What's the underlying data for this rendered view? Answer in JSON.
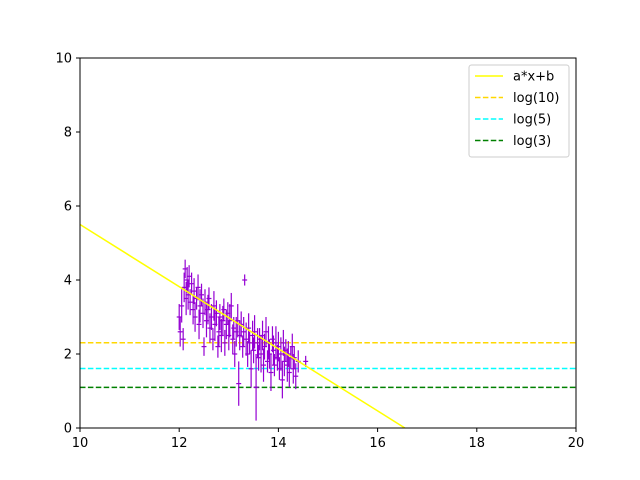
{
  "chart_data": {
    "type": "scatter",
    "xlim": [
      10,
      20
    ],
    "ylim": [
      0,
      10
    ],
    "xticks": [
      "10",
      "12",
      "14",
      "16",
      "18",
      "20"
    ],
    "yticks": [
      "0",
      "2",
      "4",
      "6",
      "8",
      "10"
    ],
    "grid": false,
    "legend_position": "top-right",
    "lines": [
      {
        "name": "a*x+b",
        "kind": "linear",
        "x": [
          10,
          16.55
        ],
        "y": [
          5.5,
          0
        ],
        "color": "#ffff00",
        "style": "solid"
      },
      {
        "name": "log(10)",
        "kind": "horizontal",
        "y": 2.303,
        "color": "#ffd700",
        "style": "dashed"
      },
      {
        "name": "log(5)",
        "kind": "horizontal",
        "y": 1.609,
        "color": "#00ffff",
        "style": "dashed"
      },
      {
        "name": "log(3)",
        "kind": "horizontal",
        "y": 1.099,
        "color": "#008000",
        "style": "dashed"
      }
    ],
    "scatter": {
      "color": "#9400d3",
      "x_error": 0.05,
      "points": [
        [
          12.0,
          3.0,
          0.35
        ],
        [
          12.02,
          2.6,
          0.4
        ],
        [
          12.05,
          3.3,
          0.45
        ],
        [
          12.08,
          2.4,
          0.3
        ],
        [
          12.1,
          3.8,
          0.4
        ],
        [
          12.12,
          4.3,
          0.25
        ],
        [
          12.14,
          3.5,
          0.45
        ],
        [
          12.16,
          4.0,
          0.35
        ],
        [
          12.18,
          3.6,
          0.4
        ],
        [
          12.2,
          4.1,
          0.3
        ],
        [
          12.22,
          3.4,
          0.35
        ],
        [
          12.25,
          3.9,
          0.3
        ],
        [
          12.28,
          3.2,
          0.4
        ],
        [
          12.3,
          3.7,
          0.35
        ],
        [
          12.32,
          3.0,
          0.4
        ],
        [
          12.35,
          3.5,
          0.3
        ],
        [
          12.38,
          3.8,
          0.35
        ],
        [
          12.4,
          2.8,
          0.4
        ],
        [
          12.42,
          3.3,
          0.45
        ],
        [
          12.45,
          3.6,
          0.3
        ],
        [
          12.48,
          3.1,
          0.4
        ],
        [
          12.5,
          2.2,
          0.25
        ],
        [
          12.52,
          3.4,
          0.35
        ],
        [
          12.55,
          2.9,
          0.45
        ],
        [
          12.58,
          3.2,
          0.4
        ],
        [
          12.6,
          3.5,
          0.3
        ],
        [
          12.62,
          2.7,
          0.4
        ],
        [
          12.65,
          3.0,
          0.35
        ],
        [
          12.68,
          2.4,
          0.3
        ],
        [
          12.7,
          3.3,
          0.4
        ],
        [
          12.72,
          2.8,
          0.45
        ],
        [
          12.75,
          3.1,
          0.35
        ],
        [
          12.78,
          2.2,
          0.3
        ],
        [
          12.8,
          2.6,
          0.4
        ],
        [
          12.82,
          3.0,
          0.35
        ],
        [
          12.85,
          2.5,
          0.45
        ],
        [
          12.88,
          2.9,
          0.4
        ],
        [
          12.9,
          3.2,
          0.3
        ],
        [
          12.92,
          2.3,
          0.35
        ],
        [
          12.95,
          2.8,
          0.4
        ],
        [
          12.98,
          3.1,
          0.3
        ],
        [
          13.0,
          2.5,
          0.4
        ],
        [
          13.02,
          2.9,
          0.45
        ],
        [
          13.05,
          3.3,
          0.35
        ],
        [
          13.08,
          2.4,
          0.4
        ],
        [
          13.1,
          2.7,
          0.3
        ],
        [
          13.12,
          2.0,
          0.35
        ],
        [
          13.15,
          2.6,
          0.4
        ],
        [
          13.18,
          2.9,
          0.45
        ],
        [
          13.2,
          1.2,
          0.6
        ],
        [
          13.22,
          2.5,
          0.4
        ],
        [
          13.25,
          2.8,
          0.35
        ],
        [
          13.28,
          2.2,
          0.3
        ],
        [
          13.3,
          2.6,
          0.4
        ],
        [
          13.32,
          4.0,
          0.15
        ],
        [
          13.35,
          2.4,
          0.45
        ],
        [
          13.38,
          2.0,
          0.35
        ],
        [
          13.4,
          2.7,
          0.4
        ],
        [
          13.42,
          2.3,
          0.3
        ],
        [
          13.45,
          1.6,
          0.5
        ],
        [
          13.48,
          2.5,
          0.4
        ],
        [
          13.5,
          2.1,
          0.35
        ],
        [
          13.52,
          2.6,
          0.45
        ],
        [
          13.55,
          1.1,
          0.9
        ],
        [
          13.58,
          2.3,
          0.4
        ],
        [
          13.6,
          1.9,
          0.35
        ],
        [
          13.62,
          2.4,
          0.3
        ],
        [
          13.65,
          2.0,
          0.5
        ],
        [
          13.68,
          2.5,
          0.4
        ],
        [
          13.7,
          1.7,
          0.45
        ],
        [
          13.72,
          2.2,
          0.35
        ],
        [
          13.75,
          2.6,
          0.4
        ],
        [
          13.78,
          1.8,
          0.3
        ],
        [
          13.8,
          2.3,
          0.45
        ],
        [
          13.82,
          2.0,
          0.4
        ],
        [
          13.85,
          1.5,
          0.5
        ],
        [
          13.88,
          2.4,
          0.35
        ],
        [
          13.9,
          2.1,
          0.4
        ],
        [
          13.92,
          1.7,
          0.3
        ],
        [
          13.95,
          2.3,
          0.45
        ],
        [
          13.98,
          1.9,
          0.35
        ],
        [
          14.0,
          2.2,
          0.4
        ],
        [
          14.02,
          1.6,
          0.3
        ],
        [
          14.05,
          2.0,
          0.45
        ],
        [
          14.08,
          1.3,
          0.5
        ],
        [
          14.1,
          2.3,
          0.35
        ],
        [
          14.12,
          1.8,
          0.4
        ],
        [
          14.15,
          2.1,
          0.3
        ],
        [
          14.18,
          1.7,
          0.45
        ],
        [
          14.2,
          2.0,
          0.35
        ],
        [
          14.22,
          1.5,
          0.4
        ],
        [
          14.25,
          1.9,
          0.3
        ],
        [
          14.28,
          2.2,
          0.35
        ],
        [
          14.3,
          1.6,
          0.4
        ],
        [
          14.32,
          1.9,
          0.3
        ],
        [
          14.35,
          1.4,
          0.35
        ],
        [
          14.4,
          1.8,
          0.3
        ],
        [
          14.55,
          1.8,
          0.15
        ]
      ]
    }
  }
}
